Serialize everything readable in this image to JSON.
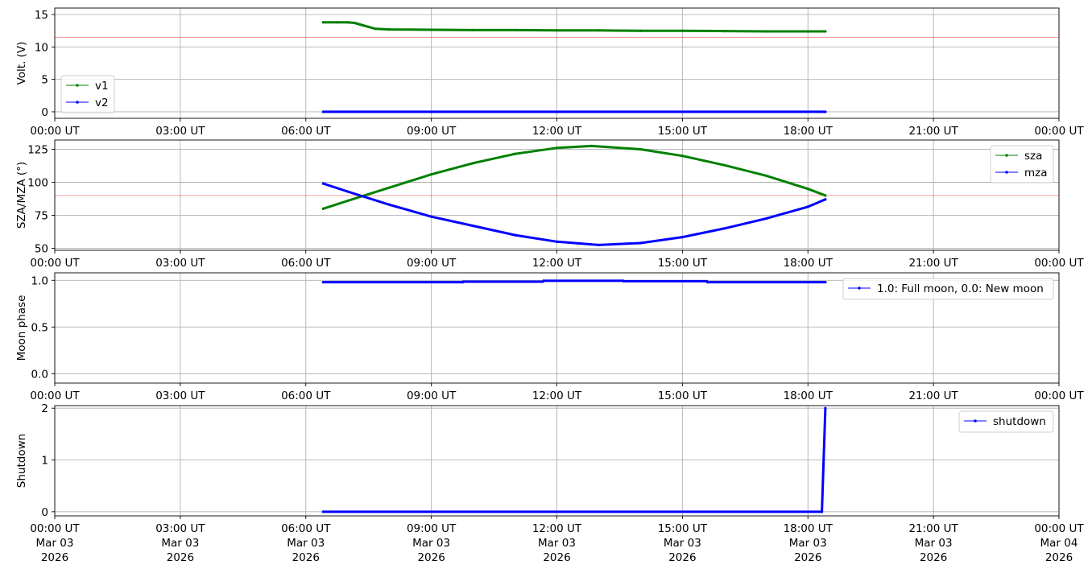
{
  "chart_data": [
    {
      "type": "line",
      "ylabel": "Volt. (V)",
      "ylim": [
        -1,
        16
      ],
      "yticks": [
        0,
        5,
        10,
        15
      ],
      "ytick_labels": [
        "0",
        "5",
        "10",
        "15"
      ],
      "grid": true,
      "legend_position": "lower-left",
      "reference_line": {
        "y": 11.5,
        "color": "#ff0000"
      },
      "series": [
        {
          "name": "v1",
          "color": "#008000",
          "x": [
            "06:25",
            "06:45",
            "07:00",
            "07:10",
            "07:20",
            "07:30",
            "07:40",
            "08:00",
            "09:00",
            "10:00",
            "11:00",
            "12:00",
            "13:00",
            "14:00",
            "15:00",
            "16:00",
            "17:00",
            "18:00",
            "18:25"
          ],
          "y": [
            13.8,
            13.8,
            13.8,
            13.7,
            13.4,
            13.1,
            12.8,
            12.7,
            12.65,
            12.6,
            12.6,
            12.55,
            12.55,
            12.5,
            12.5,
            12.45,
            12.4,
            12.4,
            12.4
          ]
        },
        {
          "name": "v2",
          "color": "#0000ff",
          "x": [
            "06:25",
            "09:00",
            "12:00",
            "15:00",
            "18:25"
          ],
          "y": [
            0,
            0,
            0,
            0,
            0
          ]
        }
      ]
    },
    {
      "type": "line",
      "ylabel": "SZA/MZA (°)",
      "ylim": [
        48.5,
        132
      ],
      "yticks": [
        50,
        75,
        100,
        125
      ],
      "ytick_labels": [
        "50",
        "75",
        "100",
        "125"
      ],
      "grid": true,
      "legend_position": "upper-right",
      "reference_line": {
        "y": 90,
        "color": "#ff0000"
      },
      "series": [
        {
          "name": "sza",
          "color": "#008000",
          "x": [
            "06:25",
            "07:00",
            "08:00",
            "09:00",
            "10:00",
            "11:00",
            "12:00",
            "12:50",
            "14:00",
            "15:00",
            "16:00",
            "17:00",
            "18:00",
            "18:25"
          ],
          "y": [
            80,
            86,
            96,
            106,
            114.5,
            121.5,
            126,
            127.5,
            125,
            120,
            113,
            105,
            95,
            90
          ]
        },
        {
          "name": "mza",
          "color": "#0000ff",
          "x": [
            "06:25",
            "07:00",
            "08:00",
            "09:00",
            "10:00",
            "11:00",
            "12:00",
            "13:00",
            "14:00",
            "15:00",
            "16:00",
            "17:00",
            "18:00",
            "18:25"
          ],
          "y": [
            99,
            93,
            83,
            74,
            67,
            60,
            55,
            52.5,
            54,
            58.5,
            65,
            72.5,
            81.5,
            87
          ]
        }
      ]
    },
    {
      "type": "line",
      "ylabel": "Moon phase",
      "ylim": [
        -0.1,
        1.08
      ],
      "yticks": [
        0,
        0.5,
        1
      ],
      "ytick_labels": [
        "0.0",
        "0.5",
        "1.0"
      ],
      "grid": true,
      "legend_position": "upper-right",
      "series": [
        {
          "name": "1.0: Full moon, 0.0: New moon",
          "color": "#0000ff",
          "x": [
            "06:25",
            "09:45",
            "09:46",
            "11:40",
            "11:41",
            "13:35",
            "13:36",
            "15:35",
            "15:36",
            "18:25"
          ],
          "y": [
            0.98,
            0.98,
            0.985,
            0.985,
            0.995,
            0.995,
            0.99,
            0.99,
            0.98,
            0.98
          ]
        }
      ]
    },
    {
      "type": "line",
      "ylabel": "Shutdown",
      "ylim": [
        -0.08,
        2.05
      ],
      "yticks": [
        0,
        1,
        2
      ],
      "ytick_labels": [
        "0",
        "1",
        "2"
      ],
      "grid": true,
      "legend_position": "upper-right",
      "series": [
        {
          "name": "shutdown",
          "color": "#0000ff",
          "x": [
            "06:25",
            "18:20",
            "18:25"
          ],
          "y": [
            0,
            0,
            2
          ]
        }
      ]
    }
  ],
  "x_axis": {
    "range": [
      "00:00",
      "24:00"
    ],
    "tick_times": [
      "00:00",
      "03:00",
      "06:00",
      "09:00",
      "12:00",
      "15:00",
      "18:00",
      "21:00",
      "24:00"
    ],
    "tick_labels": [
      "00:00 UT",
      "03:00 UT",
      "06:00 UT",
      "09:00 UT",
      "12:00 UT",
      "15:00 UT",
      "18:00 UT",
      "21:00 UT",
      "00:00 UT"
    ],
    "date_labels": [
      "Mar 03",
      "Mar 03",
      "Mar 03",
      "Mar 03",
      "Mar 03",
      "Mar 03",
      "Mar 03",
      "Mar 03",
      "Mar 04"
    ],
    "year_labels": [
      "2026",
      "2026",
      "2026",
      "2026",
      "2026",
      "2026",
      "2026",
      "2026",
      "2026"
    ]
  },
  "colors": {
    "grid": "#b0b0b0",
    "reference": "#ff0000",
    "green": "#008000",
    "blue": "#0000ff"
  }
}
